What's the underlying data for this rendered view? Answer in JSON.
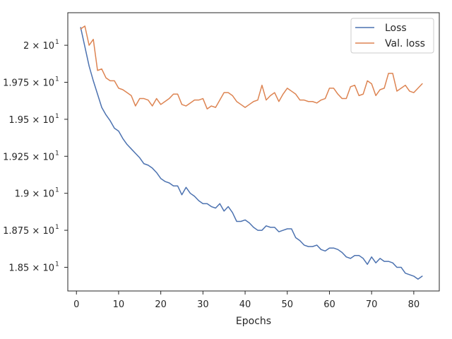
{
  "chart_data": {
    "type": "line",
    "xlabel": "Epochs",
    "ylabel": "",
    "xlim": [
      -2.05,
      86.05
    ],
    "ylim": [
      18.34,
      20.22
    ],
    "x_ticks": [
      0,
      10,
      20,
      30,
      40,
      50,
      60,
      70,
      80
    ],
    "y_ticks": [
      {
        "value": 18.5,
        "label": "1.85 × 10"
      },
      {
        "value": 18.75,
        "label": "1.875 × 10"
      },
      {
        "value": 19.0,
        "label": "1.9 × 10"
      },
      {
        "value": 19.25,
        "label": "1.925 × 10"
      },
      {
        "value": 19.5,
        "label": "1.95 × 10"
      },
      {
        "value": 19.75,
        "label": "1.975 × 10"
      },
      {
        "value": 20.0,
        "label": "2 × 10"
      }
    ],
    "y_tick_exponent": "1",
    "legend": {
      "position": "upper right"
    },
    "grid": false,
    "x": [
      1,
      2,
      3,
      4,
      5,
      6,
      7,
      8,
      9,
      10,
      11,
      12,
      13,
      14,
      15,
      16,
      17,
      18,
      19,
      20,
      21,
      22,
      23,
      24,
      25,
      26,
      27,
      28,
      29,
      30,
      31,
      32,
      33,
      34,
      35,
      36,
      37,
      38,
      39,
      40,
      41,
      42,
      43,
      44,
      45,
      46,
      47,
      48,
      49,
      50,
      51,
      52,
      53,
      54,
      55,
      56,
      57,
      58,
      59,
      60,
      61,
      62,
      63,
      64,
      65,
      66,
      67,
      68,
      69,
      70,
      71,
      72,
      73,
      74,
      75,
      76,
      77,
      78,
      79,
      80,
      81,
      82
    ],
    "series": [
      {
        "name": "Loss",
        "color": "#4c72b0",
        "values": [
          20.12,
          19.99,
          19.86,
          19.76,
          19.67,
          19.58,
          19.53,
          19.49,
          19.44,
          19.42,
          19.37,
          19.33,
          19.3,
          19.27,
          19.24,
          19.2,
          19.19,
          19.17,
          19.14,
          19.1,
          19.08,
          19.07,
          19.05,
          19.05,
          18.99,
          19.04,
          19.0,
          18.98,
          18.95,
          18.93,
          18.93,
          18.91,
          18.9,
          18.93,
          18.88,
          18.91,
          18.87,
          18.81,
          18.81,
          18.82,
          18.8,
          18.77,
          18.75,
          18.75,
          18.78,
          18.77,
          18.77,
          18.74,
          18.75,
          18.76,
          18.76,
          18.7,
          18.68,
          18.65,
          18.64,
          18.64,
          18.65,
          18.62,
          18.61,
          18.63,
          18.63,
          18.62,
          18.6,
          18.57,
          18.56,
          18.58,
          18.58,
          18.56,
          18.52,
          18.57,
          18.53,
          18.56,
          18.54,
          18.54,
          18.53,
          18.5,
          18.5,
          18.46,
          18.45,
          18.44,
          18.42,
          18.44
        ]
      },
      {
        "name": "Val. loss",
        "color": "#dd8452",
        "values": [
          20.11,
          20.13,
          20.0,
          20.04,
          19.83,
          19.84,
          19.78,
          19.76,
          19.76,
          19.71,
          19.7,
          19.68,
          19.66,
          19.59,
          19.64,
          19.64,
          19.63,
          19.59,
          19.64,
          19.6,
          19.62,
          19.64,
          19.67,
          19.67,
          19.6,
          19.59,
          19.61,
          19.63,
          19.63,
          19.64,
          19.57,
          19.59,
          19.58,
          19.63,
          19.68,
          19.68,
          19.66,
          19.62,
          19.6,
          19.58,
          19.6,
          19.62,
          19.63,
          19.73,
          19.63,
          19.66,
          19.68,
          19.62,
          19.67,
          19.71,
          19.69,
          19.67,
          19.63,
          19.63,
          19.62,
          19.62,
          19.61,
          19.63,
          19.64,
          19.71,
          19.71,
          19.67,
          19.64,
          19.64,
          19.72,
          19.73,
          19.66,
          19.67,
          19.76,
          19.74,
          19.66,
          19.7,
          19.71,
          19.81,
          19.81,
          19.69,
          19.71,
          19.73,
          19.69,
          19.68,
          19.71,
          19.74
        ]
      }
    ]
  }
}
